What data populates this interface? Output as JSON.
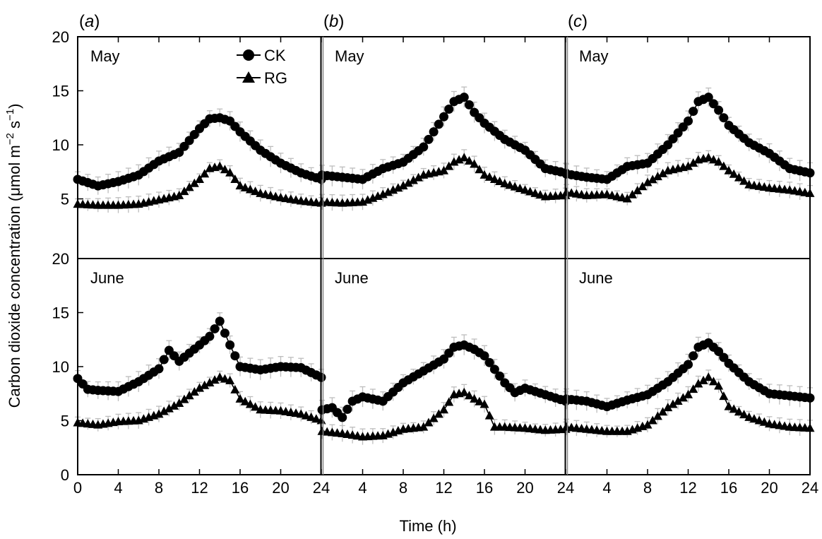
{
  "chart_data": {
    "type": "line",
    "ylabel": "Carbon dioxide concentration (μmol m−2 s−1)",
    "ylabel_parts": {
      "pre": "Carbon dioxide concentration (μmol m",
      "sup1": "−2",
      "mid": " s",
      "sup2": "−1",
      "post": ")"
    },
    "xlabel": "Time (h)",
    "xlim": [
      0,
      24
    ],
    "ylim": [
      0,
      20
    ],
    "x_ticks": [
      "0",
      "4",
      "8",
      "12",
      "16",
      "20",
      "24"
    ],
    "y_ticks": [
      "0",
      "5",
      "10",
      "15",
      "20"
    ],
    "legend": {
      "placement": "top-inside",
      "entries": [
        "CK",
        "RG"
      ]
    },
    "colors": {
      "ck": "#000000",
      "rg": "#000000",
      "error_bar": "#bdbdbd",
      "frame": "#000000"
    },
    "column_labels": [
      "(a)",
      "(b)",
      "(c)"
    ],
    "column_letters": [
      "a",
      "b",
      "c"
    ],
    "row_labels": [
      "May",
      "June"
    ],
    "panels": [
      {
        "column": 0,
        "row": 0,
        "label": "May",
        "series": [
          {
            "name": "CK",
            "marker": "circle",
            "x": [
              0,
              2,
              4,
              6,
              8,
              10,
              12,
              13,
              14,
              15,
              16,
              18,
              20,
              22,
              24
            ],
            "y": [
              6.8,
              6.2,
              6.6,
              7.2,
              8.5,
              9.3,
              11.5,
              12.4,
              12.5,
              12.2,
              11.2,
              9.5,
              8.3,
              7.4,
              6.8
            ]
          },
          {
            "name": "RG",
            "marker": "triangle",
            "x": [
              0,
              2,
              4,
              6,
              8,
              10,
              12,
              13,
              14,
              15,
              16,
              18,
              20,
              22,
              24
            ],
            "y": [
              4.5,
              4.4,
              4.4,
              4.5,
              4.9,
              5.3,
              6.8,
              7.8,
              8.0,
              7.4,
              6.2,
              5.5,
              5.1,
              4.8,
              4.6
            ]
          }
        ]
      },
      {
        "column": 1,
        "row": 0,
        "label": "May",
        "series": [
          {
            "name": "CK",
            "marker": "circle",
            "x": [
              0,
              2,
              4,
              6,
              8,
              10,
              12,
              13,
              14,
              15,
              16,
              18,
              20,
              22,
              24
            ],
            "y": [
              7.2,
              7.0,
              6.8,
              7.8,
              8.4,
              9.8,
              12.6,
              14.0,
              14.4,
              13.0,
              12.0,
              10.5,
              9.5,
              7.8,
              7.4
            ]
          },
          {
            "name": "RG",
            "marker": "triangle",
            "x": [
              0,
              2,
              4,
              6,
              8,
              10,
              12,
              13,
              14,
              15,
              16,
              18,
              20,
              22,
              24
            ],
            "y": [
              4.7,
              4.6,
              4.7,
              5.4,
              6.2,
              7.2,
              7.6,
              8.4,
              8.8,
              8.2,
              7.2,
              6.4,
              5.8,
              5.2,
              5.3
            ]
          }
        ]
      },
      {
        "column": 2,
        "row": 0,
        "label": "May",
        "series": [
          {
            "name": "CK",
            "marker": "circle",
            "x": [
              0,
              2,
              4,
              6,
              8,
              10,
              12,
              13,
              14,
              15,
              16,
              18,
              20,
              22,
              24
            ],
            "y": [
              7.3,
              7.0,
              6.8,
              8.0,
              8.3,
              10.0,
              12.2,
              14.0,
              14.4,
              13.2,
              11.8,
              10.2,
              9.2,
              7.8,
              7.4
            ]
          },
          {
            "name": "RG",
            "marker": "triangle",
            "x": [
              0,
              2,
              4,
              6,
              8,
              10,
              12,
              13,
              14,
              15,
              16,
              18,
              20,
              22,
              24
            ],
            "y": [
              5.6,
              5.3,
              5.4,
              5.0,
              6.5,
              7.6,
              8.0,
              8.6,
              8.8,
              8.4,
              7.6,
              6.3,
              6.0,
              5.8,
              5.5
            ]
          }
        ]
      },
      {
        "column": 0,
        "row": 1,
        "label": "June",
        "series": [
          {
            "name": "CK",
            "marker": "circle",
            "x": [
              0,
              1,
              2,
              4,
              6,
              8,
              9,
              10,
              12,
              13,
              14,
              15,
              16,
              18,
              20,
              22,
              24
            ],
            "y": [
              8.9,
              7.9,
              7.8,
              7.7,
              8.6,
              9.8,
              11.5,
              10.5,
              12.0,
              12.8,
              14.2,
              12.0,
              10.0,
              9.7,
              10.0,
              9.9,
              9.0
            ]
          },
          {
            "name": "RG",
            "marker": "triangle",
            "x": [
              0,
              2,
              4,
              6,
              8,
              10,
              12,
              14,
              15,
              16,
              18,
              20,
              22,
              24
            ],
            "y": [
              4.8,
              4.6,
              4.9,
              5.0,
              5.6,
              6.6,
              8.0,
              9.0,
              8.7,
              7.0,
              6.0,
              5.9,
              5.6,
              5.0
            ]
          }
        ]
      },
      {
        "column": 1,
        "row": 1,
        "label": "June",
        "series": [
          {
            "name": "CK",
            "marker": "circle",
            "x": [
              0,
              1,
              2,
              3,
              4,
              6,
              8,
              10,
              12,
              13,
              14,
              15,
              16,
              18,
              19,
              20,
              22,
              24
            ],
            "y": [
              6.0,
              6.2,
              5.3,
              6.8,
              7.2,
              6.8,
              8.5,
              9.6,
              10.7,
              11.8,
              12.0,
              11.6,
              11.0,
              8.5,
              7.6,
              8.0,
              7.4,
              6.8
            ]
          },
          {
            "name": "RG",
            "marker": "triangle",
            "x": [
              0,
              2,
              4,
              6,
              8,
              10,
              12,
              13,
              14,
              15,
              16,
              17,
              18,
              20,
              22,
              24
            ],
            "y": [
              4.0,
              3.8,
              3.5,
              3.6,
              4.2,
              4.4,
              6.0,
              7.4,
              7.6,
              7.0,
              6.5,
              4.4,
              4.4,
              4.3,
              4.1,
              4.2
            ]
          }
        ]
      },
      {
        "column": 2,
        "row": 1,
        "label": "June",
        "series": [
          {
            "name": "CK",
            "marker": "circle",
            "x": [
              0,
              2,
              4,
              6,
              8,
              10,
              12,
              13,
              14,
              15,
              16,
              18,
              20,
              22,
              24
            ],
            "y": [
              7.0,
              6.8,
              6.3,
              6.9,
              7.4,
              8.6,
              10.2,
              11.8,
              12.2,
              11.4,
              10.3,
              8.6,
              7.5,
              7.3,
              7.1
            ]
          },
          {
            "name": "RG",
            "marker": "triangle",
            "x": [
              0,
              2,
              4,
              6,
              8,
              10,
              12,
              13,
              14,
              15,
              16,
              18,
              20,
              22,
              24
            ],
            "y": [
              4.4,
              4.2,
              4.0,
              4.0,
              4.6,
              6.2,
              7.4,
              8.4,
              9.0,
              8.2,
              6.3,
              5.3,
              4.7,
              4.4,
              4.3
            ]
          }
        ]
      }
    ]
  }
}
